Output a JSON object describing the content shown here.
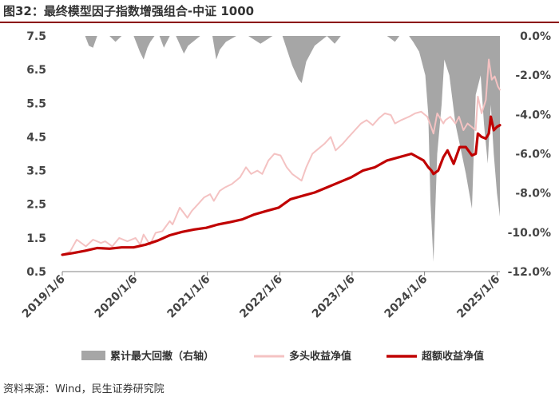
{
  "header": {
    "title": "图32：最终模型因子指数增强组合-中证 1000"
  },
  "footer": {
    "source": "资料来源：Wind，民生证券研究院"
  },
  "chart_data": {
    "type": "line",
    "x_type": "date",
    "x_ticks": [
      "2019/1/6",
      "2020/1/6",
      "2021/1/6",
      "2022/1/6",
      "2023/1/6",
      "2024/1/6",
      "2025/1/6"
    ],
    "x_range": [
      "2019-01-06",
      "2025-01-20"
    ],
    "left_axis": {
      "ticks": [
        "0.5",
        "1.5",
        "2.5",
        "3.5",
        "4.5",
        "5.5",
        "6.5",
        "7.5"
      ],
      "ylim": [
        0.5,
        7.5
      ]
    },
    "right_axis": {
      "ticks": [
        "-12.0%",
        "-10.0%",
        "-8.0%",
        "-6.0%",
        "-4.0%",
        "-2.0%",
        "0.0%"
      ],
      "ylim": [
        -12,
        0
      ]
    },
    "legend": {
      "position": "bottom"
    },
    "colors": {
      "drawdown": "#a6a6a6",
      "long": "#f4c2c2",
      "excess": "#c00000"
    },
    "series": [
      {
        "name": "累计最大回撤（右轴）",
        "type": "area",
        "axis": "right",
        "x": [
          "2019-01-06",
          "2019-03-01",
          "2019-05-01",
          "2019-05-20",
          "2019-06-10",
          "2019-07-01",
          "2019-09-01",
          "2019-10-01",
          "2019-11-01",
          "2020-01-01",
          "2020-02-01",
          "2020-02-20",
          "2020-03-10",
          "2020-03-25",
          "2020-04-15",
          "2020-05-10",
          "2020-06-01",
          "2020-07-01",
          "2020-08-01",
          "2020-09-10",
          "2020-10-01",
          "2020-12-01",
          "2021-02-01",
          "2021-02-20",
          "2021-03-10",
          "2021-04-10",
          "2021-06-01",
          "2021-08-01",
          "2021-10-01",
          "2021-12-01",
          "2022-01-20",
          "2022-02-15",
          "2022-03-10",
          "2022-04-10",
          "2022-04-27",
          "2022-05-20",
          "2022-07-01",
          "2022-09-01",
          "2022-10-10",
          "2022-11-10",
          "2023-01-01",
          "2023-03-01",
          "2023-05-01",
          "2023-07-01",
          "2023-08-10",
          "2023-09-01",
          "2023-10-20",
          "2023-11-10",
          "2023-12-10",
          "2024-01-10",
          "2024-01-25",
          "2024-02-05",
          "2024-02-20",
          "2024-03-10",
          "2024-04-01",
          "2024-04-15",
          "2024-05-10",
          "2024-06-10",
          "2024-07-01",
          "2024-08-01",
          "2024-09-01",
          "2024-09-20",
          "2024-10-15",
          "2024-11-01",
          "2024-11-20",
          "2024-12-05",
          "2024-12-20",
          "2025-01-05",
          "2025-01-20"
        ],
        "values": [
          0,
          0,
          0,
          -0.5,
          -0.6,
          0,
          0,
          -0.3,
          0,
          0,
          -0.8,
          -1.2,
          -0.6,
          -0.3,
          0,
          0,
          -0.6,
          0,
          0,
          -0.9,
          -0.5,
          0,
          0,
          -1.2,
          -0.7,
          -0.3,
          0,
          0,
          -0.4,
          0,
          0,
          -0.8,
          -1.5,
          -2.2,
          -2.4,
          -1.3,
          -0.5,
          0,
          -0.4,
          0,
          0,
          0,
          0,
          0,
          -0.3,
          0,
          0,
          -0.3,
          -0.8,
          -2.0,
          -4.0,
          -8.5,
          -11.5,
          -6.0,
          -3.5,
          -1.2,
          -2.0,
          -4.5,
          -5.5,
          -7.0,
          -8.8,
          -3.0,
          -2.0,
          -4.5,
          -6.5,
          -3.5,
          -6.0,
          -8.0,
          -9.2
        ]
      },
      {
        "name": "多头收益净值",
        "type": "line",
        "axis": "left",
        "x": [
          "2019-01-06",
          "2019-02-15",
          "2019-03-20",
          "2019-05-05",
          "2019-06-10",
          "2019-07-20",
          "2019-08-10",
          "2019-09-15",
          "2019-10-20",
          "2019-11-30",
          "2020-01-10",
          "2020-02-03",
          "2020-02-20",
          "2020-03-23",
          "2020-04-20",
          "2020-05-25",
          "2020-07-01",
          "2020-07-15",
          "2020-08-20",
          "2020-09-28",
          "2020-10-20",
          "2020-11-20",
          "2020-12-20",
          "2021-01-20",
          "2021-02-08",
          "2021-03-10",
          "2021-04-05",
          "2021-05-10",
          "2021-06-20",
          "2021-07-20",
          "2021-08-15",
          "2021-09-15",
          "2021-10-10",
          "2021-11-10",
          "2021-12-10",
          "2022-01-10",
          "2022-02-10",
          "2022-03-10",
          "2022-04-26",
          "2022-05-20",
          "2022-06-20",
          "2022-07-10",
          "2022-08-20",
          "2022-09-20",
          "2022-10-15",
          "2022-11-20",
          "2022-12-20",
          "2023-01-20",
          "2023-02-20",
          "2023-03-20",
          "2023-04-20",
          "2023-05-20",
          "2023-06-20",
          "2023-07-20",
          "2023-08-10",
          "2023-09-10",
          "2023-10-20",
          "2023-11-20",
          "2023-12-20",
          "2024-01-20",
          "2024-02-05",
          "2024-02-20",
          "2024-03-10",
          "2024-04-10",
          "2024-04-20",
          "2024-05-15",
          "2024-06-10",
          "2024-06-28",
          "2024-07-20",
          "2024-08-10",
          "2024-09-20",
          "2024-10-01",
          "2024-10-20",
          "2024-11-10",
          "2024-11-25",
          "2024-12-10",
          "2024-12-25",
          "2025-01-10",
          "2025-01-20"
        ],
        "values": [
          1.0,
          1.1,
          1.45,
          1.25,
          1.45,
          1.35,
          1.4,
          1.25,
          1.5,
          1.4,
          1.5,
          1.3,
          1.6,
          1.3,
          1.65,
          1.7,
          2.0,
          1.9,
          2.4,
          2.1,
          2.3,
          2.5,
          2.7,
          2.8,
          2.6,
          2.9,
          3.0,
          3.1,
          3.3,
          3.6,
          3.4,
          3.5,
          3.4,
          3.8,
          4.0,
          3.95,
          3.6,
          3.4,
          3.2,
          3.6,
          4.0,
          4.1,
          4.3,
          4.5,
          4.1,
          4.3,
          4.5,
          4.7,
          4.9,
          5.0,
          4.85,
          5.05,
          5.2,
          5.15,
          4.9,
          5.0,
          5.1,
          5.2,
          5.25,
          5.1,
          4.85,
          4.6,
          5.2,
          4.9,
          5.0,
          5.1,
          4.9,
          5.1,
          4.7,
          4.9,
          4.7,
          5.7,
          5.2,
          5.6,
          6.8,
          6.2,
          6.3,
          6.0,
          5.9
        ]
      },
      {
        "name": "超额收益净值",
        "type": "line",
        "axis": "left",
        "x": [
          "2019-01-06",
          "2019-03-01",
          "2019-05-01",
          "2019-07-01",
          "2019-09-01",
          "2019-11-01",
          "2020-01-01",
          "2020-03-01",
          "2020-05-01",
          "2020-07-01",
          "2020-09-01",
          "2020-11-01",
          "2021-01-01",
          "2021-03-01",
          "2021-05-01",
          "2021-07-01",
          "2021-09-01",
          "2021-11-01",
          "2022-01-01",
          "2022-03-01",
          "2022-05-01",
          "2022-07-01",
          "2022-09-01",
          "2022-11-01",
          "2023-01-01",
          "2023-03-01",
          "2023-05-01",
          "2023-07-01",
          "2023-09-01",
          "2023-11-01",
          "2024-01-01",
          "2024-01-25",
          "2024-02-10",
          "2024-02-20",
          "2024-03-15",
          "2024-04-10",
          "2024-05-01",
          "2024-06-01",
          "2024-07-01",
          "2024-08-01",
          "2024-09-01",
          "2024-09-20",
          "2024-10-01",
          "2024-10-20",
          "2024-11-10",
          "2024-11-25",
          "2024-12-05",
          "2024-12-20",
          "2025-01-05",
          "2025-01-20"
        ],
        "values": [
          1.0,
          1.05,
          1.12,
          1.2,
          1.18,
          1.22,
          1.22,
          1.3,
          1.42,
          1.58,
          1.68,
          1.75,
          1.8,
          1.9,
          1.97,
          2.05,
          2.2,
          2.3,
          2.4,
          2.65,
          2.75,
          2.85,
          3.0,
          3.15,
          3.3,
          3.5,
          3.6,
          3.8,
          3.9,
          4.0,
          3.8,
          3.6,
          3.5,
          3.4,
          3.5,
          3.9,
          4.1,
          3.7,
          4.2,
          4.2,
          3.95,
          4.0,
          4.6,
          4.5,
          4.45,
          4.6,
          5.1,
          4.7,
          4.8,
          4.85
        ]
      }
    ]
  }
}
